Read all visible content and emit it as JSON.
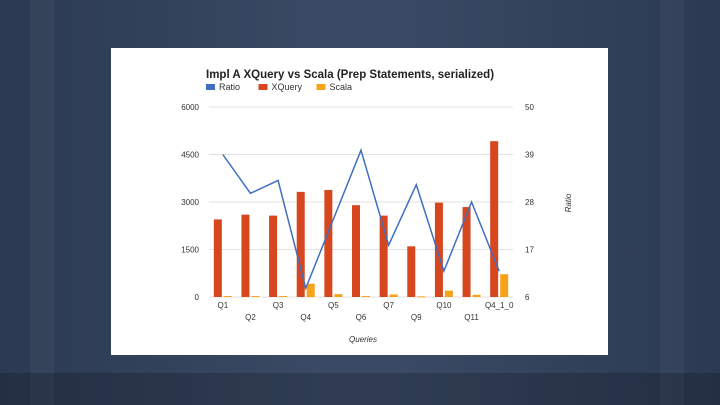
{
  "colors": {
    "ratio": "#3f6fc0",
    "xquery": "#d6461f",
    "scala": "#f7a31a",
    "grid": "#e2e2e2"
  },
  "chart_data": {
    "type": "bar",
    "title": "Impl A XQuery vs Scala (Prep Statements, serialized)",
    "xlabel": "Queries",
    "ylabel": "",
    "y2label": "Ratio",
    "legend_position": "top-left",
    "ylim": [
      0,
      6000
    ],
    "y2lim": [
      6,
      50
    ],
    "grid": true,
    "y_ticks": [
      "0",
      "1500",
      "3000",
      "4500",
      "6000"
    ],
    "y2_ticks": [
      "6",
      "17",
      "28",
      "39",
      "50"
    ],
    "categories": [
      "Q1",
      "Q2",
      "Q3",
      "Q4",
      "Q5",
      "Q6",
      "Q7",
      "Q9",
      "Q10",
      "Q11",
      "Q4_1_0"
    ],
    "x_tick_labels_top": [
      "Q1",
      "Q3",
      "Q5",
      "Q7",
      "Q10",
      "Q4_1_0"
    ],
    "x_tick_labels_bottom": [
      "Q2",
      "Q4",
      "Q6",
      "Q9",
      "Q11"
    ],
    "series": [
      {
        "name": "Ratio",
        "kind": "line",
        "axis": "right",
        "values": [
          39,
          30,
          33,
          8,
          24,
          40,
          18,
          32,
          12,
          28,
          12
        ]
      },
      {
        "name": "XQuery",
        "kind": "bar",
        "axis": "left",
        "values": [
          2450,
          2600,
          2570,
          3320,
          3380,
          2900,
          2570,
          1600,
          2980,
          2840,
          4920
        ]
      },
      {
        "name": "Scala",
        "kind": "bar",
        "axis": "left",
        "values": [
          30,
          30,
          30,
          420,
          90,
          30,
          80,
          20,
          200,
          70,
          720
        ]
      }
    ]
  }
}
